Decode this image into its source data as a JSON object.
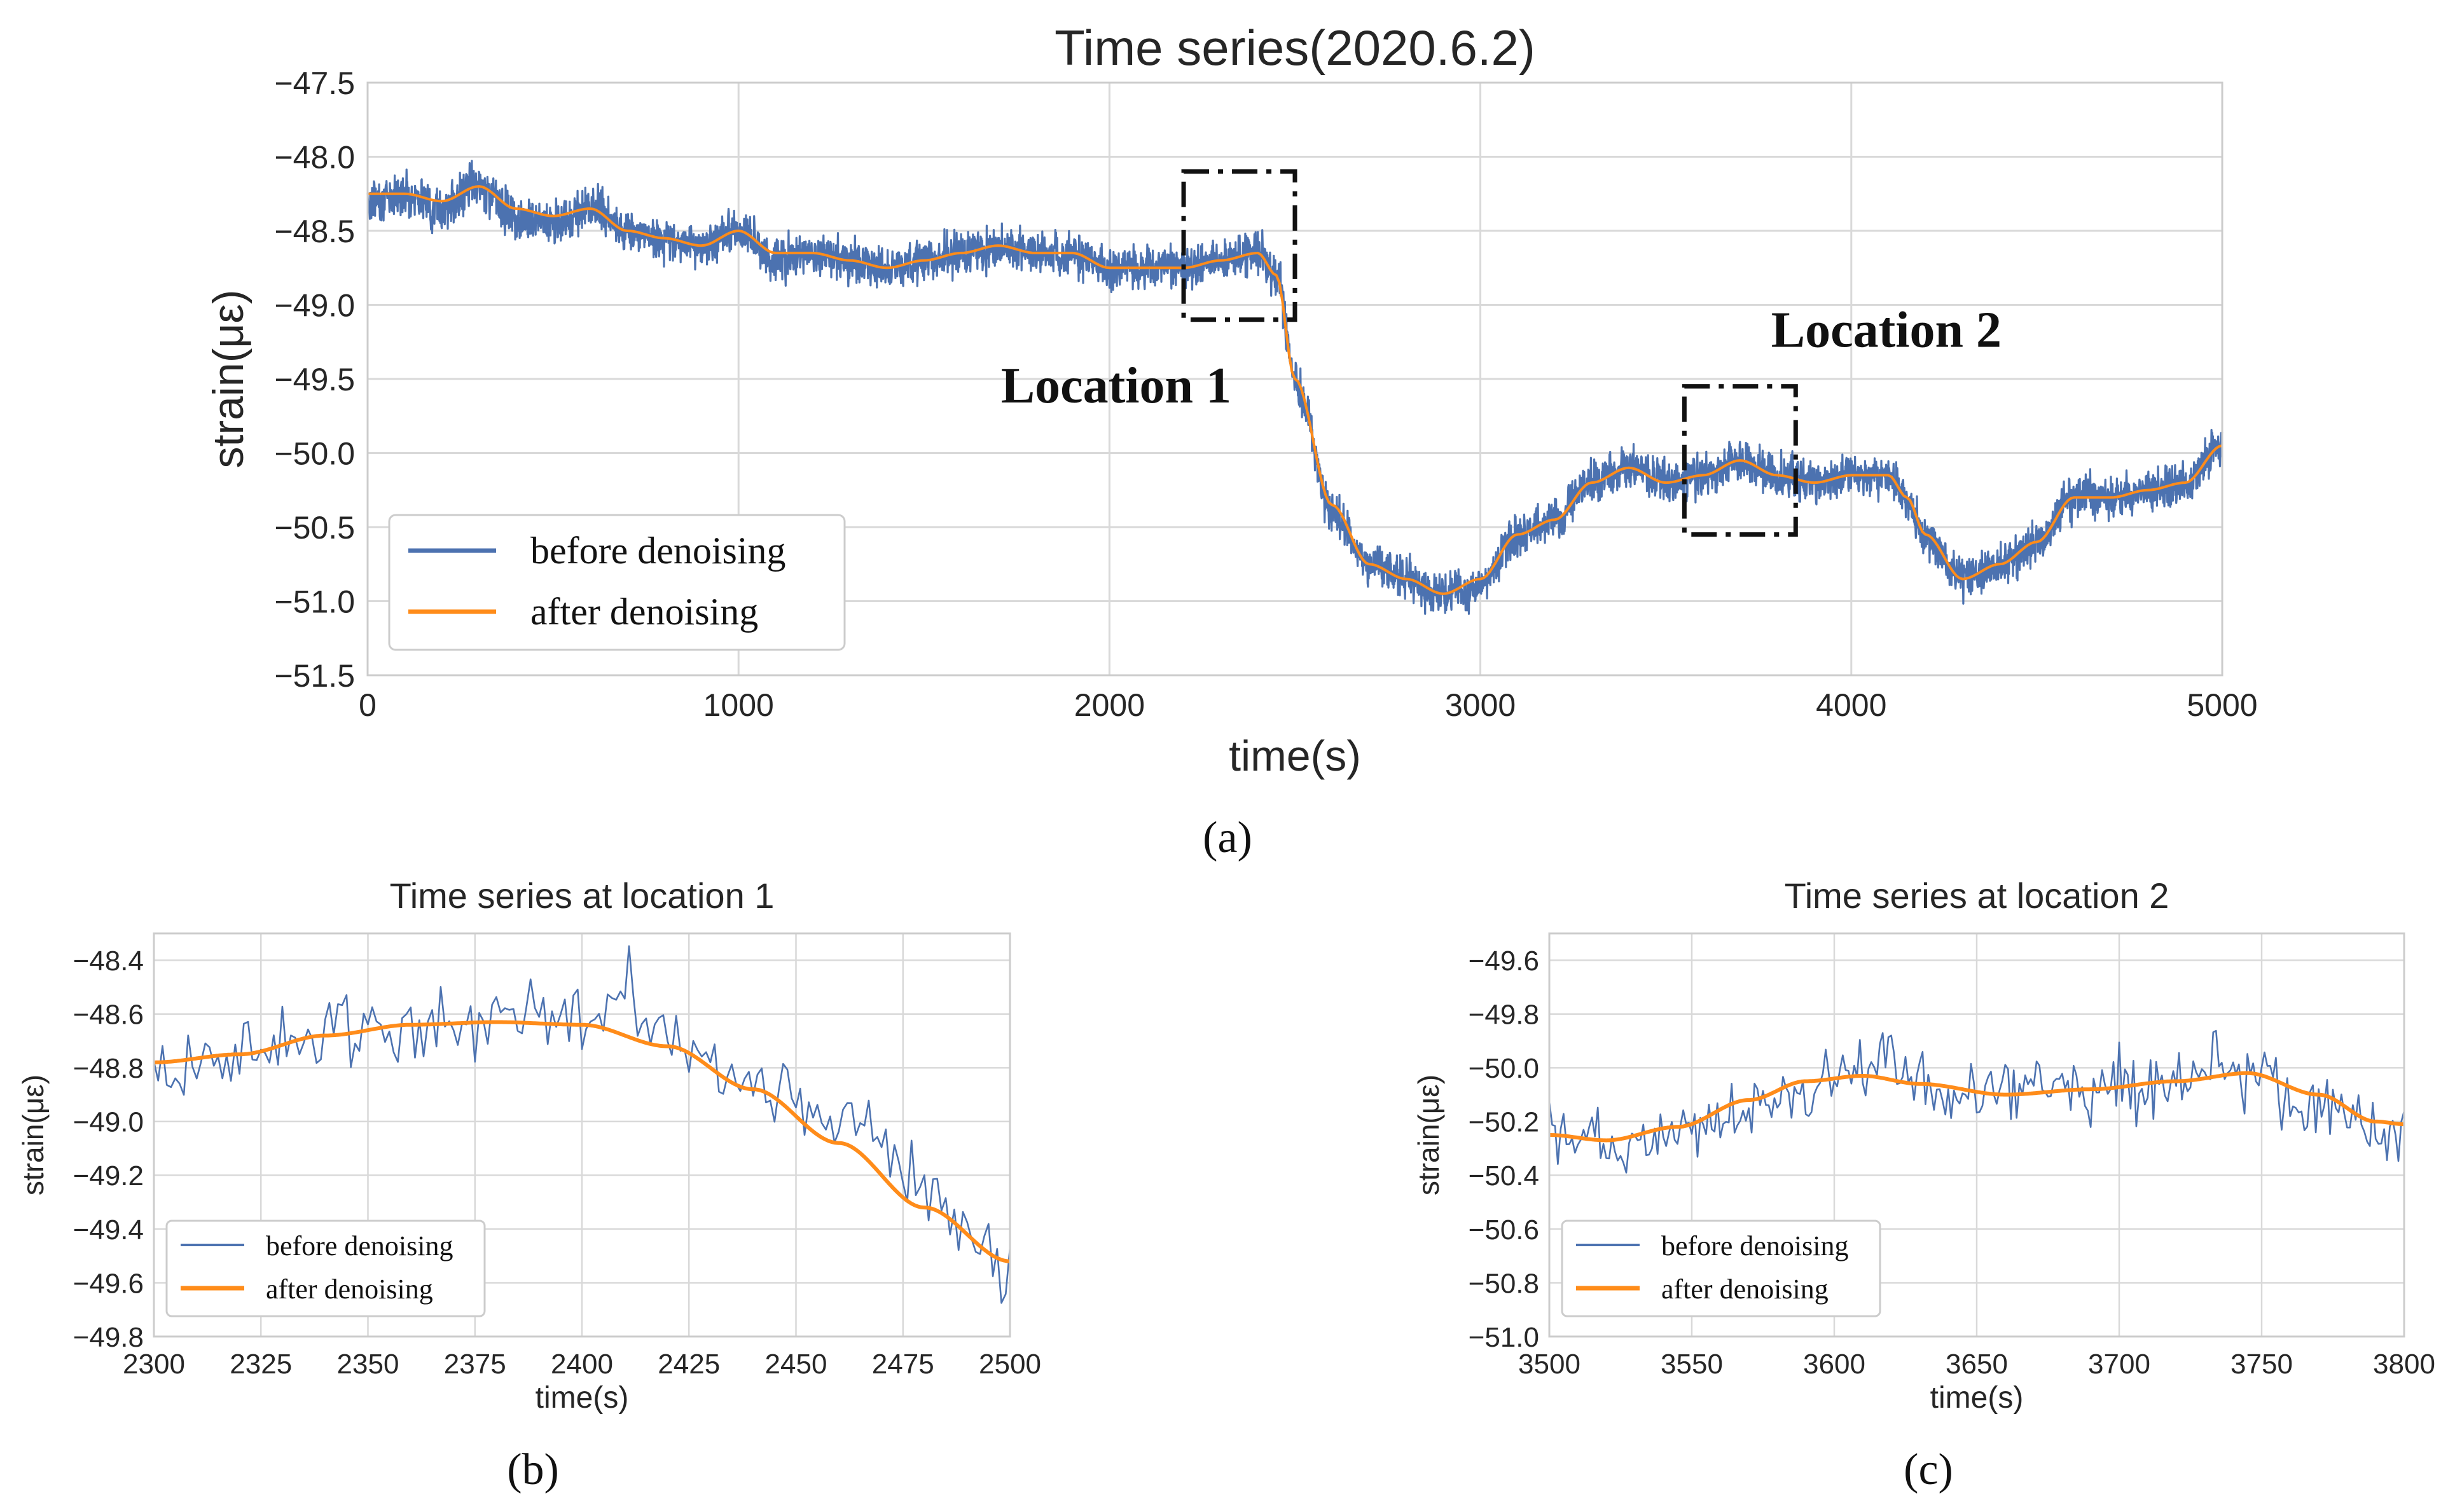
{
  "colors": {
    "before": "#4c72b0",
    "after": "#ff8c1a",
    "grid": "#d9d9d9",
    "axis": "#cccccc",
    "text": "#262626",
    "box": "#111111"
  },
  "chart_data": [
    {
      "id": "a",
      "type": "line",
      "title": "Time series(2020.6.2)",
      "xlabel": "time(s)",
      "ylabel": "strain(με)",
      "xlim": [
        0,
        5000
      ],
      "ylim": [
        -51.5,
        -47.5
      ],
      "xticks": [
        0,
        1000,
        2000,
        3000,
        4000,
        5000
      ],
      "yticks": [
        -47.5,
        -48.0,
        -48.5,
        -49.0,
        -49.5,
        -50.0,
        -50.5,
        -51.0,
        -51.5
      ],
      "grid": true,
      "legend_position": "lower-left",
      "caption": "(a)",
      "series": [
        {
          "name": "before denoising",
          "noise_amplitude": 0.12,
          "x": [
            0,
            100,
            200,
            300,
            400,
            500,
            600,
            700,
            800,
            900,
            1000,
            1100,
            1200,
            1300,
            1400,
            1500,
            1600,
            1700,
            1800,
            1900,
            2000,
            2100,
            2200,
            2300,
            2400,
            2450,
            2500,
            2600,
            2700,
            2800,
            2900,
            3000,
            3100,
            3200,
            3300,
            3400,
            3500,
            3600,
            3700,
            3800,
            3900,
            4000,
            4100,
            4150,
            4200,
            4300,
            4400,
            4500,
            4600,
            4700,
            4800,
            4900,
            5000
          ],
          "y": [
            -48.3,
            -48.25,
            -48.35,
            -48.2,
            -48.4,
            -48.45,
            -48.35,
            -48.5,
            -48.55,
            -48.6,
            -48.5,
            -48.7,
            -48.65,
            -48.7,
            -48.75,
            -48.7,
            -48.65,
            -48.6,
            -48.65,
            -48.65,
            -48.75,
            -48.75,
            -48.75,
            -48.7,
            -48.65,
            -48.8,
            -49.5,
            -50.4,
            -50.75,
            -50.85,
            -50.95,
            -50.9,
            -50.55,
            -50.45,
            -50.2,
            -50.1,
            -50.2,
            -50.15,
            -50.05,
            -50.15,
            -50.2,
            -50.15,
            -50.15,
            -50.3,
            -50.55,
            -50.85,
            -50.75,
            -50.6,
            -50.3,
            -50.3,
            -50.25,
            -50.2,
            -49.95
          ]
        },
        {
          "name": "after denoising",
          "x": [
            0,
            100,
            200,
            300,
            400,
            500,
            600,
            700,
            800,
            900,
            1000,
            1100,
            1200,
            1300,
            1400,
            1500,
            1600,
            1700,
            1800,
            1900,
            2000,
            2100,
            2200,
            2300,
            2400,
            2450,
            2500,
            2600,
            2700,
            2800,
            2900,
            3000,
            3100,
            3200,
            3300,
            3400,
            3500,
            3600,
            3700,
            3800,
            3900,
            4000,
            4100,
            4150,
            4200,
            4300,
            4400,
            4500,
            4600,
            4700,
            4800,
            4900,
            5000
          ],
          "y": [
            -48.25,
            -48.25,
            -48.3,
            -48.2,
            -48.35,
            -48.4,
            -48.35,
            -48.5,
            -48.55,
            -48.6,
            -48.5,
            -48.65,
            -48.65,
            -48.7,
            -48.75,
            -48.7,
            -48.65,
            -48.6,
            -48.65,
            -48.65,
            -48.75,
            -48.75,
            -48.75,
            -48.7,
            -48.65,
            -48.8,
            -49.5,
            -50.35,
            -50.75,
            -50.85,
            -50.95,
            -50.85,
            -50.55,
            -50.45,
            -50.2,
            -50.1,
            -50.2,
            -50.15,
            -50.05,
            -50.15,
            -50.2,
            -50.15,
            -50.15,
            -50.3,
            -50.55,
            -50.85,
            -50.75,
            -50.6,
            -50.3,
            -50.3,
            -50.25,
            -50.2,
            -49.95
          ]
        }
      ],
      "annotations": [
        {
          "label": "Location 1",
          "x_range": [
            2200,
            2500
          ],
          "y_range": [
            -48.1,
            -49.1
          ]
        },
        {
          "label": "Location 2",
          "x_range": [
            3550,
            3850
          ],
          "y_range": [
            -49.55,
            -50.55
          ]
        }
      ]
    },
    {
      "id": "b",
      "type": "line",
      "title": "Time series at location 1",
      "xlabel": "time(s)",
      "ylabel": "strain(με)",
      "xlim": [
        2300,
        2500
      ],
      "ylim": [
        -49.8,
        -48.3
      ],
      "xticks": [
        2300,
        2325,
        2350,
        2375,
        2400,
        2425,
        2450,
        2475,
        2500
      ],
      "yticks": [
        -48.4,
        -48.6,
        -48.8,
        -49.0,
        -49.2,
        -49.4,
        -49.6,
        -49.8
      ],
      "grid": true,
      "legend_position": "lower-left",
      "caption": "(b)",
      "series": [
        {
          "name": "before denoising",
          "noise_amplitude": 0.11,
          "x": [
            2300,
            2320,
            2340,
            2360,
            2380,
            2400,
            2410,
            2420,
            2440,
            2460,
            2480,
            2500
          ],
          "y": [
            -48.8,
            -48.75,
            -48.65,
            -48.65,
            -48.6,
            -48.6,
            -48.5,
            -48.7,
            -48.85,
            -49.0,
            -49.25,
            -49.55
          ]
        },
        {
          "name": "after denoising",
          "x": [
            2300,
            2320,
            2340,
            2360,
            2380,
            2400,
            2420,
            2440,
            2460,
            2480,
            2500
          ],
          "y": [
            -48.78,
            -48.75,
            -48.68,
            -48.64,
            -48.63,
            -48.64,
            -48.72,
            -48.88,
            -49.08,
            -49.32,
            -49.52
          ]
        }
      ]
    },
    {
      "id": "c",
      "type": "line",
      "title": "Time series at location 2",
      "xlabel": "time(s)",
      "ylabel": "strain(με)",
      "xlim": [
        3500,
        3800
      ],
      "ylim": [
        -51.0,
        -49.5
      ],
      "xticks": [
        3500,
        3550,
        3600,
        3650,
        3700,
        3750,
        3800
      ],
      "yticks": [
        -49.6,
        -49.8,
        -50.0,
        -50.2,
        -50.4,
        -50.6,
        -50.8,
        -51.0
      ],
      "grid": true,
      "legend_position": "lower-left",
      "caption": "(c)",
      "series": [
        {
          "name": "before denoising",
          "noise_amplitude": 0.11,
          "x": [
            3500,
            3530,
            3560,
            3590,
            3610,
            3650,
            3680,
            3710,
            3740,
            3770,
            3800
          ],
          "y": [
            -50.25,
            -50.3,
            -50.2,
            -50.1,
            -50.0,
            -50.1,
            -50.1,
            -50.05,
            -50.0,
            -50.15,
            -50.25
          ]
        },
        {
          "name": "after denoising",
          "x": [
            3500,
            3520,
            3545,
            3570,
            3590,
            3610,
            3630,
            3660,
            3690,
            3720,
            3745,
            3770,
            3790,
            3800
          ],
          "y": [
            -50.25,
            -50.27,
            -50.22,
            -50.12,
            -50.05,
            -50.03,
            -50.06,
            -50.1,
            -50.08,
            -50.05,
            -50.02,
            -50.1,
            -50.2,
            -50.21
          ]
        }
      ]
    }
  ]
}
